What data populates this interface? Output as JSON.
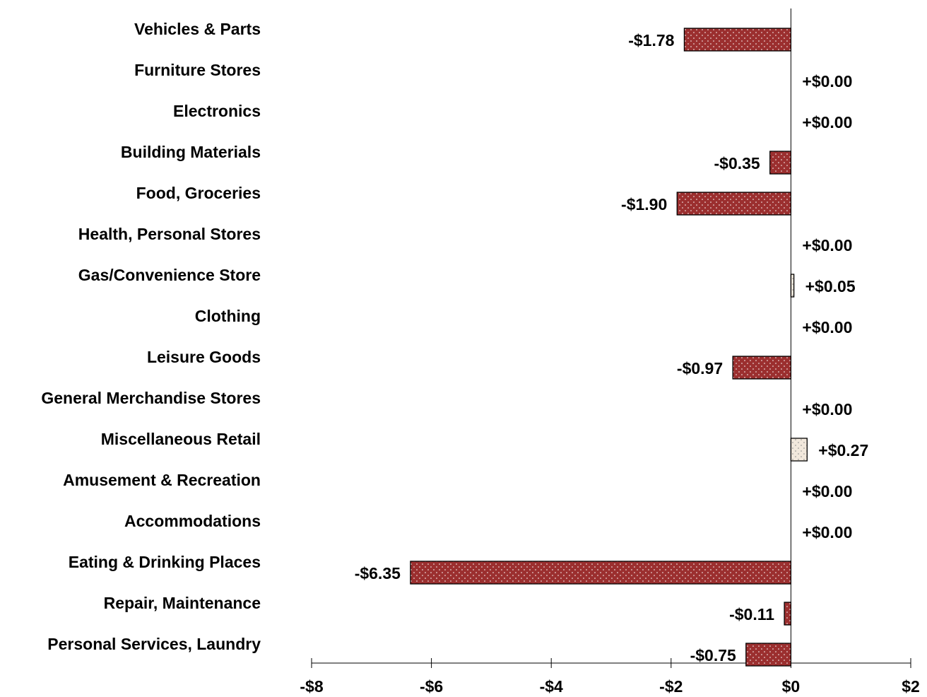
{
  "chart_data": {
    "type": "hbar",
    "categories": [
      "Vehicles & Parts",
      "Furniture Stores",
      "Electronics",
      "Building Materials",
      "Food, Groceries",
      "Health, Personal Stores",
      "Gas/Convenience Store",
      "Clothing",
      "Leisure Goods",
      "General Merchandise Stores",
      "Miscellaneous Retail",
      "Amusement & Recreation",
      "Accommodations",
      "Eating & Drinking Places",
      "Repair, Maintenance",
      "Personal Services, Laundry"
    ],
    "values": [
      -1.78,
      0,
      0,
      -0.35,
      -1.9,
      0,
      0.05,
      0,
      -0.97,
      0,
      0.27,
      0,
      0,
      -6.35,
      -0.11,
      -0.75
    ],
    "value_labels": [
      "-$1.78",
      "+$0.00",
      "+$0.00",
      "-$0.35",
      "-$1.90",
      "+$0.00",
      "+$0.05",
      "+$0.00",
      "-$0.97",
      "+$0.00",
      "+$0.27",
      "+$0.00",
      "+$0.00",
      "-$6.35",
      "-$0.11",
      "-$0.75"
    ],
    "negative_color": "#9b2f2f",
    "positive_color": "#f2e8dc",
    "xlim": [
      -8,
      2
    ],
    "xticks": [
      {
        "value": -8,
        "label": "-$8"
      },
      {
        "value": -6,
        "label": "-$6"
      },
      {
        "value": -4,
        "label": "-$4"
      },
      {
        "value": -2,
        "label": "-$2"
      },
      {
        "value": 0,
        "label": "$0"
      },
      {
        "value": 2,
        "label": "$2"
      }
    ]
  }
}
